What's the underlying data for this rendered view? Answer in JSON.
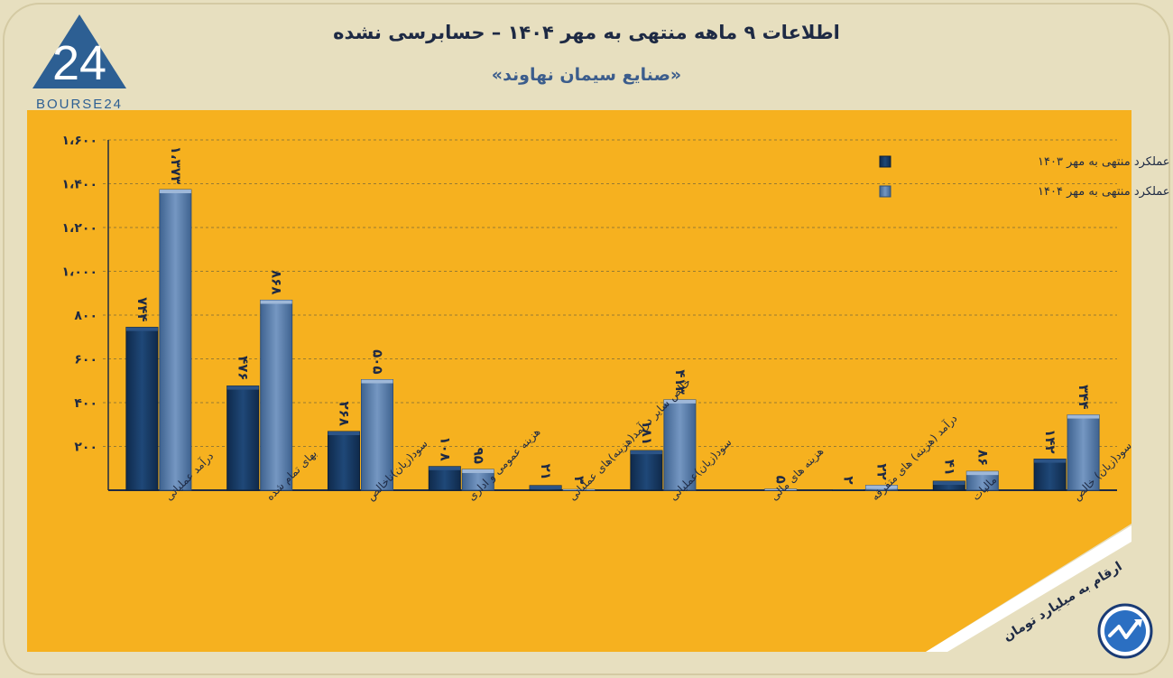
{
  "header": {
    "title": "اطلاعات ۹ ماهه منتهی به مهر ۱۴۰۴ – حسابرسی نشده",
    "subtitle": "«صنایع سیمان نهاوند»"
  },
  "logo": {
    "text": "BOURSE24",
    "mark": "24"
  },
  "footer": {
    "unit_note": "ارقام به میلیارد تومان"
  },
  "colors": {
    "background": "#e7dfbf",
    "panel": "#f6b11f",
    "series1": "#173a66",
    "series2": "#5a7eaa",
    "title": "#1e2a44"
  },
  "chart_data": {
    "type": "bar",
    "title": "اطلاعات ۹ ماهه منتهی به مهر ۱۴۰۴ – حسابرسی نشده",
    "xlabel": "",
    "ylabel": "ارقام به میلیارد تومان",
    "ylim": [
      0,
      1600
    ],
    "yticks": [
      200,
      400,
      600,
      800,
      1000,
      1200,
      1400,
      1600
    ],
    "ytick_labels": [
      "۲۰۰",
      "۴۰۰",
      "۶۰۰",
      "۸۰۰",
      "۱،۰۰۰",
      "۱،۲۰۰",
      "۱،۴۰۰",
      "۱،۶۰۰"
    ],
    "grid": true,
    "legend_position": "top-right",
    "categories": [
      "درآمد عملیاتی",
      "بهای تمام شده",
      "سود(زیان)ناخالص",
      "هزینه عمومی و اداری",
      "خالص سایر درآمد(هزینه)های عملیاتی",
      "سود(زیان)عملیاتی",
      "هزینه های مالی",
      "درآمد (هزینه) های متفرقه",
      "مالیات",
      "سود(زیان) خالص"
    ],
    "series": [
      {
        "name": "عملکرد منتهی به مهر ۱۴۰۳",
        "values": [
          744,
          476,
          268,
          108,
          21,
          181,
          0,
          2,
          41,
          142
        ],
        "labels": [
          "۷۴۴",
          "۴۷۶",
          "۲۶۸",
          "۱۰۸",
          "۲۱",
          "۱۸۱",
          "",
          "۲",
          "۴۱",
          "۱۴۲"
        ]
      },
      {
        "name": "عملکرد منتهی به مهر ۱۴۰۴",
        "values": [
          1373,
          868,
          505,
          95,
          3,
          413,
          5,
          22,
          86,
          344
        ],
        "labels": [
          "۱،۳۷۳",
          "۸۶۸",
          "۵۰۵",
          "۹۵",
          "۳",
          "۴۱۳",
          "۵",
          "۲۲",
          "۸۶",
          "۳۴۴"
        ]
      }
    ]
  }
}
